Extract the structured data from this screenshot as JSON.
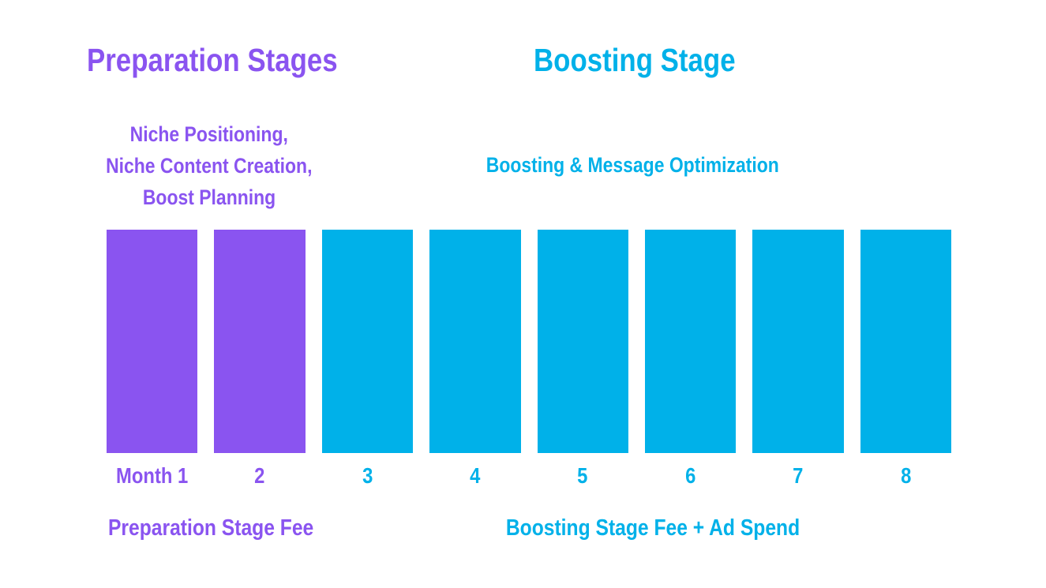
{
  "palette": {
    "purple": "#8A54F0",
    "cyan": "#00B1E9",
    "background": "#FFFFFF"
  },
  "stages": {
    "preparation": {
      "title": "Preparation Stages",
      "description_lines": [
        "Niche Positioning,",
        "Niche Content Creation,",
        "Boost Planning"
      ],
      "fee_label": "Preparation Stage Fee",
      "color": "#8A54F0",
      "months": [
        "Month 1",
        "2"
      ]
    },
    "boosting": {
      "title": "Boosting Stage",
      "description": "Boosting & Message Optimization",
      "fee_label": "Boosting Stage Fee + Ad Spend",
      "color": "#00B1E9",
      "months": [
        "3",
        "4",
        "5",
        "6",
        "7",
        "8"
      ]
    }
  },
  "chart_data": {
    "type": "bar",
    "categories": [
      "Month 1",
      "2",
      "3",
      "4",
      "5",
      "6",
      "7",
      "8"
    ],
    "values": [
      1,
      1,
      1,
      1,
      1,
      1,
      1,
      1
    ],
    "bar_colors": [
      "#8A54F0",
      "#8A54F0",
      "#00B1E9",
      "#00B1E9",
      "#00B1E9",
      "#00B1E9",
      "#00B1E9",
      "#00B1E9"
    ],
    "title": "",
    "xlabel": "",
    "ylabel": "",
    "axes_visible": false,
    "grid": false,
    "legend": "none",
    "groups": [
      {
        "name": "Preparation Stages",
        "color": "#8A54F0",
        "categories": [
          "Month 1",
          "2"
        ]
      },
      {
        "name": "Boosting Stage",
        "color": "#00B1E9",
        "categories": [
          "3",
          "4",
          "5",
          "6",
          "7",
          "8"
        ]
      }
    ]
  }
}
